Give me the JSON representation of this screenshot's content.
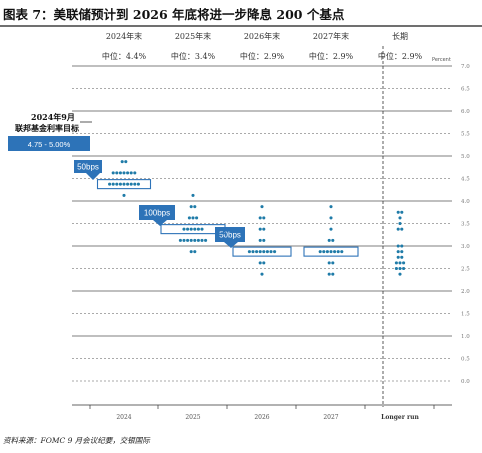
{
  "title": "图表 7：美联储预计到 2026 年底将进一步降息 200 个基点",
  "source": "资料来源：FOMC 9 月会议纪要，交银国际",
  "current_rate": {
    "label": "2024年9月",
    "sublabel": "联邦基金利率目标",
    "range": "4.75 - 5.00%"
  },
  "colors": {
    "dot": "#1f7ba8",
    "box": "#2d73b8",
    "grid": "#555555",
    "title_bar": "#1a1a1a"
  },
  "chart_data": {
    "type": "scatter",
    "title": "图表 7：美联储预计到 2026 年底将进一步降息 200 个基点",
    "xlabel": "",
    "ylabel": "Percent",
    "ylim": [
      0,
      7
    ],
    "yticks": [
      "0.0",
      "0.5",
      "1.0",
      "1.5",
      "2.0",
      "2.5",
      "3.0",
      "3.5",
      "4.0",
      "4.5",
      "5.0",
      "5.5",
      "6.0",
      "6.5",
      "7.0"
    ],
    "categories": [
      "2024",
      "2025",
      "2026",
      "2027",
      "Longer run"
    ],
    "headers": [
      {
        "year": "2024年末",
        "median": "中位：4.4%"
      },
      {
        "year": "2025年末",
        "median": "中位：3.4%"
      },
      {
        "year": "2026年末",
        "median": "中位：2.9%"
      },
      {
        "year": "2027年末",
        "median": "中位：2.9%"
      },
      {
        "year": "长期",
        "median": "中位：2.9%"
      }
    ],
    "medians": [
      4.375,
      3.375,
      2.875,
      2.875,
      2.875
    ],
    "dots": [
      [
        {
          "rate": 4.875,
          "count": 2
        },
        {
          "rate": 4.625,
          "count": 7
        },
        {
          "rate": 4.375,
          "count": 9
        },
        {
          "rate": 4.125,
          "count": 1
        }
      ],
      [
        {
          "rate": 4.125,
          "count": 1
        },
        {
          "rate": 3.875,
          "count": 2
        },
        {
          "rate": 3.625,
          "count": 3
        },
        {
          "rate": 3.375,
          "count": 6
        },
        {
          "rate": 3.125,
          "count": 8
        },
        {
          "rate": 2.875,
          "count": 2
        }
      ],
      [
        {
          "rate": 3.875,
          "count": 1
        },
        {
          "rate": 3.625,
          "count": 2
        },
        {
          "rate": 3.375,
          "count": 2
        },
        {
          "rate": 3.125,
          "count": 2
        },
        {
          "rate": 2.875,
          "count": 8
        },
        {
          "rate": 2.625,
          "count": 2
        },
        {
          "rate": 2.375,
          "count": 1
        }
      ],
      [
        {
          "rate": 3.875,
          "count": 1
        },
        {
          "rate": 3.625,
          "count": 1
        },
        {
          "rate": 3.375,
          "count": 1
        },
        {
          "rate": 3.125,
          "count": 2
        },
        {
          "rate": 2.875,
          "count": 7
        },
        {
          "rate": 2.625,
          "count": 2
        },
        {
          "rate": 2.375,
          "count": 2
        }
      ],
      [
        {
          "rate": 3.75,
          "count": 2
        },
        {
          "rate": 3.625,
          "count": 1
        },
        {
          "rate": 3.5,
          "count": 1
        },
        {
          "rate": 3.375,
          "count": 2
        },
        {
          "rate": 3.0,
          "count": 2
        },
        {
          "rate": 2.875,
          "count": 2
        },
        {
          "rate": 2.75,
          "count": 2
        },
        {
          "rate": 2.625,
          "count": 3
        },
        {
          "rate": 2.5,
          "count": 3
        },
        {
          "rate": 2.375,
          "count": 1
        }
      ]
    ],
    "cuts": [
      {
        "label": "50bps"
      },
      {
        "label": "100bps"
      },
      {
        "label": "50bps"
      }
    ],
    "grid": true
  }
}
